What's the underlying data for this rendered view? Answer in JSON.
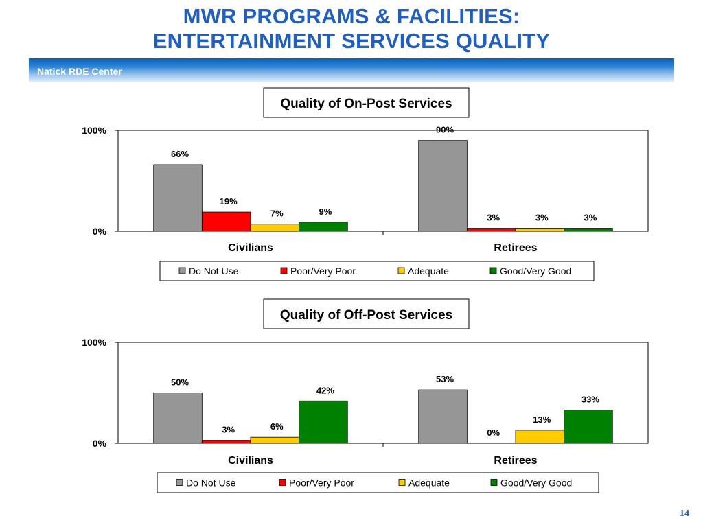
{
  "slide": {
    "title_line1": "MWR PROGRAMS & FACILITIES:",
    "title_line2": "ENTERTAINMENT SERVICES QUALITY",
    "banner_text": "Natick RDE Center",
    "page_number": "14"
  },
  "colors": {
    "title": "#1f5fbf",
    "do_not_use": "#969696",
    "poor": "#ff0000",
    "adequate": "#ffcc00",
    "good": "#008000"
  },
  "chart_data": [
    {
      "type": "bar",
      "title": "Quality of On-Post Services",
      "categories": [
        "Civilians",
        "Retirees"
      ],
      "ylim": [
        0,
        100
      ],
      "ytick_labels": [
        "100%",
        "0%"
      ],
      "legend_position": "bottom",
      "grid": false,
      "series": [
        {
          "name": "Do Not Use",
          "color": "#969696",
          "values": [
            66,
            90
          ],
          "labels": [
            "66%",
            "90%"
          ]
        },
        {
          "name": "Poor/Very Poor",
          "color": "#ff0000",
          "values": [
            19,
            3
          ],
          "labels": [
            "19%",
            "3%"
          ]
        },
        {
          "name": "Adequate",
          "color": "#ffcc00",
          "values": [
            7,
            3
          ],
          "labels": [
            "7%",
            "3%"
          ]
        },
        {
          "name": "Good/Very Good",
          "color": "#008000",
          "values": [
            9,
            3
          ],
          "labels": [
            "9%",
            "3%"
          ]
        }
      ]
    },
    {
      "type": "bar",
      "title": "Quality of Off-Post Services",
      "categories": [
        "Civilians",
        "Retirees"
      ],
      "ylim": [
        0,
        100
      ],
      "ytick_labels": [
        "100%",
        "0%"
      ],
      "legend_position": "bottom",
      "grid": false,
      "series": [
        {
          "name": "Do Not Use",
          "color": "#969696",
          "values": [
            50,
            53
          ],
          "labels": [
            "50%",
            "53%"
          ]
        },
        {
          "name": "Poor/Very Poor",
          "color": "#ff0000",
          "values": [
            3,
            0
          ],
          "labels": [
            "3%",
            "0%"
          ]
        },
        {
          "name": "Adequate",
          "color": "#ffcc00",
          "values": [
            6,
            13
          ],
          "labels": [
            "6%",
            "13%"
          ]
        },
        {
          "name": "Good/Very Good",
          "color": "#008000",
          "values": [
            42,
            33
          ],
          "labels": [
            "42%",
            "33%"
          ]
        }
      ]
    }
  ]
}
